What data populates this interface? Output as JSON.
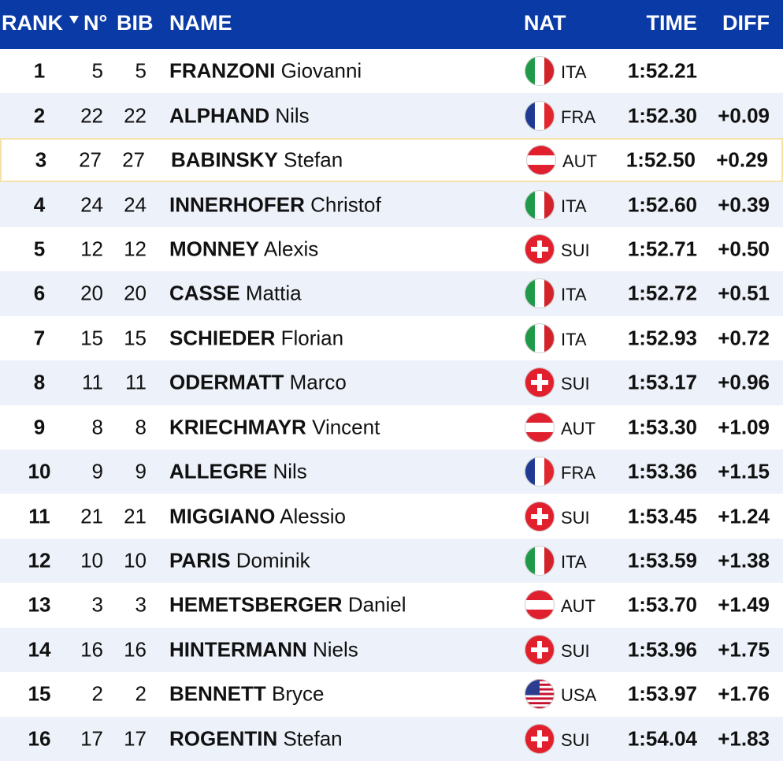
{
  "table": {
    "header": {
      "rank": "RANK",
      "no": "N°",
      "bib": "BIB",
      "name": "NAME",
      "nat": "NAT",
      "time": "TIME",
      "diff": "DIFF"
    },
    "rows": [
      {
        "rank": "1",
        "no": "5",
        "bib": "5",
        "last": "FRANZONI",
        "first": "Giovanni",
        "nat": "ITA",
        "time": "1:52.21",
        "diff": null
      },
      {
        "rank": "2",
        "no": "22",
        "bib": "22",
        "last": "ALPHAND",
        "first": "Nils",
        "nat": "FRA",
        "time": "1:52.30",
        "diff": "+0.09"
      },
      {
        "rank": "3",
        "no": "27",
        "bib": "27",
        "last": "BABINSKY",
        "first": "Stefan",
        "nat": "AUT",
        "time": "1:52.50",
        "diff": "+0.29"
      },
      {
        "rank": "4",
        "no": "24",
        "bib": "24",
        "last": "INNERHOFER",
        "first": "Christof",
        "nat": "ITA",
        "time": "1:52.60",
        "diff": "+0.39"
      },
      {
        "rank": "5",
        "no": "12",
        "bib": "12",
        "last": "MONNEY",
        "first": "Alexis",
        "nat": "SUI",
        "time": "1:52.71",
        "diff": "+0.50"
      },
      {
        "rank": "6",
        "no": "20",
        "bib": "20",
        "last": "CASSE",
        "first": "Mattia",
        "nat": "ITA",
        "time": "1:52.72",
        "diff": "+0.51"
      },
      {
        "rank": "7",
        "no": "15",
        "bib": "15",
        "last": "SCHIEDER",
        "first": "Florian",
        "nat": "ITA",
        "time": "1:52.93",
        "diff": "+0.72"
      },
      {
        "rank": "8",
        "no": "11",
        "bib": "11",
        "last": "ODERMATT",
        "first": "Marco",
        "nat": "SUI",
        "time": "1:53.17",
        "diff": "+0.96"
      },
      {
        "rank": "9",
        "no": "8",
        "bib": "8",
        "last": "KRIECHMAYR",
        "first": "Vincent",
        "nat": "AUT",
        "time": "1:53.30",
        "diff": "+1.09"
      },
      {
        "rank": "10",
        "no": "9",
        "bib": "9",
        "last": "ALLEGRE",
        "first": "Nils",
        "nat": "FRA",
        "time": "1:53.36",
        "diff": "+1.15"
      },
      {
        "rank": "11",
        "no": "21",
        "bib": "21",
        "last": "MIGGIANO",
        "first": "Alessio",
        "nat": "SUI",
        "time": "1:53.45",
        "diff": "+1.24"
      },
      {
        "rank": "12",
        "no": "10",
        "bib": "10",
        "last": "PARIS",
        "first": "Dominik",
        "nat": "ITA",
        "time": "1:53.59",
        "diff": "+1.38"
      },
      {
        "rank": "13",
        "no": "3",
        "bib": "3",
        "last": "HEMETSBERGER",
        "first": "Daniel",
        "nat": "AUT",
        "time": "1:53.70",
        "diff": "+1.49"
      },
      {
        "rank": "14",
        "no": "16",
        "bib": "16",
        "last": "HINTERMANN",
        "first": "Niels",
        "nat": "SUI",
        "time": "1:53.96",
        "diff": "+1.75"
      },
      {
        "rank": "15",
        "no": "2",
        "bib": "2",
        "last": "BENNETT",
        "first": "Bryce",
        "nat": "USA",
        "time": "1:53.97",
        "diff": "+1.76"
      },
      {
        "rank": "16",
        "no": "17",
        "bib": "17",
        "last": "ROGENTIN",
        "first": "Stefan",
        "nat": "SUI",
        "time": "1:54.04",
        "diff": "+1.83"
      }
    ]
  }
}
